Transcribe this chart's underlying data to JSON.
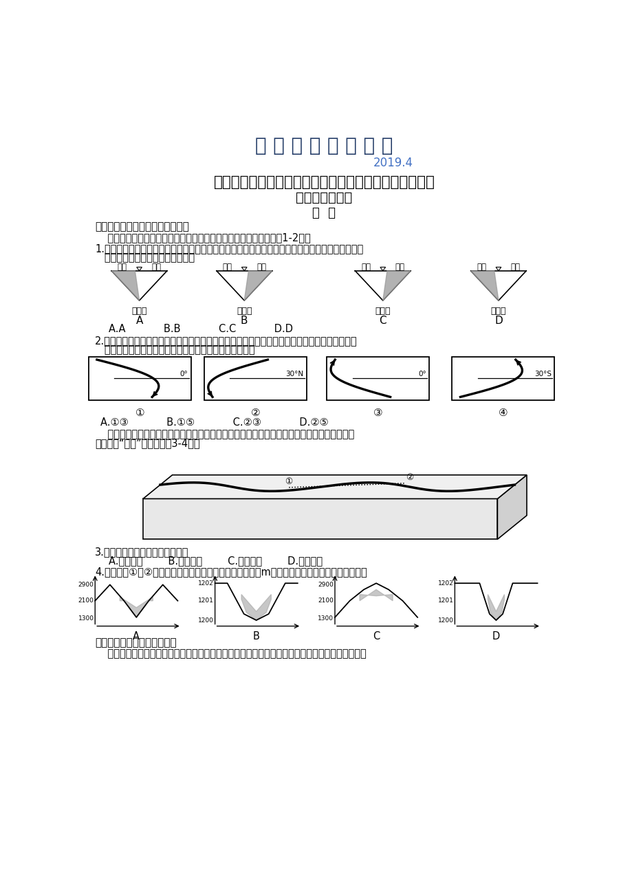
{
  "title_main": "新 版 地 理 精 品 资 料",
  "title_main_color": "#1F3864",
  "date": "2019.4",
  "date_color": "#4472C4",
  "subtitle1": "河南省新乡市高三上学期第一次模拟考试地理试题及答案",
  "subtitle2": "能力提升训练卷",
  "subtitle3": "地  理",
  "section1": "一．地转偏向力对河流地貌的影响",
  "para1": "    地球自转产生的地转偏向力对河流两岸的影响非常显著。据图回答1-2题。",
  "q1_line1": "1.下图中，由于地转偏向力的影响，造成平直河道两岸冲刷与堆积的差异（阴影部分为堆积物），若",
  "q1_line2": "   河流由西向东流，则正确的图示是",
  "q1_choices": "A.A            B.B            C.C            D.D",
  "q2_line1": "2.一条东西流向的河流，其上游南岸冲刷厉害，而北岸有沙洲形成，其下游则北岸冲刷厉害，南岸",
  "q2_line2": "   入海处形成河口三角洲。与河流位置和流向相吸合的图是",
  "q2_choices": "A.①③            B.①⑤            C.②③            D.②⑤",
  "snake_line1": "    蛇曲之美，既有温婉轻柔，也有恢宏磅碘。下图表示绕旋在内蒙古草原间的河流弯曲景象，我",
  "snake_line2": "们称之为“蛇曲”。读图完成3-4题。",
  "q3_text": "3.造成图中河流形态的主要因素是",
  "q3_choices": "A.向斜成谷        B.断裂下陷        C.流水侵蚀        D.风力侵蚀",
  "q4_text": "4.下图中由①至②的地形剖面图（纵坐标表示海拔，单位：m，阴影区为泥沙沉积物）最可能的是",
  "section2": "二．湿地问题及其可持续发展",
  "para2": "    西藏拉鲁湿地是世界上海拔最高的的城市湿地。它位于拉萨市的西北角，为典型的青藏高原湿地，",
  "bg_color": "#FFFFFF"
}
